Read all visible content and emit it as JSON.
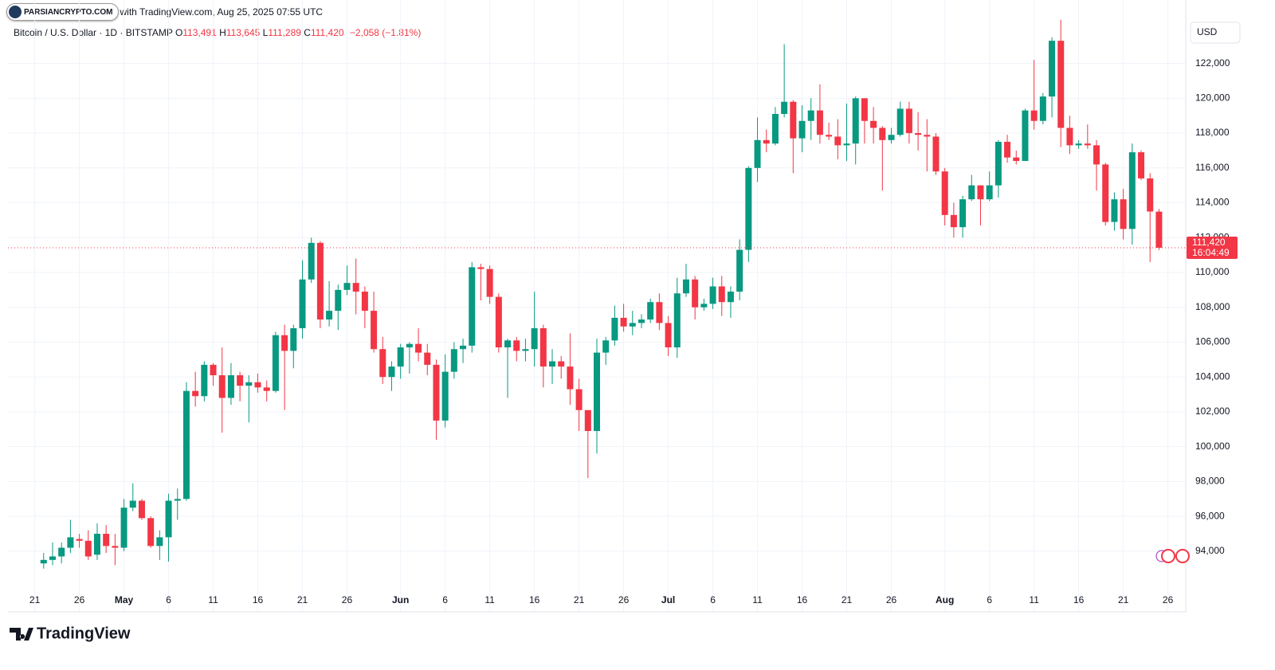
{
  "badge": "PARSIANCRYPTO.COM",
  "caption": "with TradingView.com, Aug 25, 2025 07:55 UTC",
  "legend": {
    "symbol": "Bitcoin / U.S. Dollar · 1D · BITSTAMP",
    "items": [
      {
        "label": "O",
        "value": "113,491"
      },
      {
        "label": "H",
        "value": "113,645"
      },
      {
        "label": "L",
        "value": "111,289"
      },
      {
        "label": "C",
        "value": "111,420"
      }
    ],
    "change": "−2,058 (−1.81%)"
  },
  "brand": "TradingView",
  "chart_data": {
    "type": "candlestick",
    "currency": "USD",
    "up_color": "#089981",
    "down_color": "#f23645",
    "grid": true,
    "last_price_label": "111,420",
    "countdown": "16:04:49",
    "xlim": [
      "2025-04-18",
      "2025-08-28"
    ],
    "ylim": [
      91800,
      125000
    ],
    "yticks": [
      {
        "value": 94000,
        "label": "94,000"
      },
      {
        "value": 96000,
        "label": "96,000"
      },
      {
        "value": 98000,
        "label": "98,000"
      },
      {
        "value": 100000,
        "label": "100,000"
      },
      {
        "value": 102000,
        "label": "102,000"
      },
      {
        "value": 104000,
        "label": "104,000"
      },
      {
        "value": 106000,
        "label": "106,000"
      },
      {
        "value": 108000,
        "label": "108,000"
      },
      {
        "value": 110000,
        "label": "110,000"
      },
      {
        "value": 112000,
        "label": "112,000"
      },
      {
        "value": 114000,
        "label": "114,000"
      },
      {
        "value": 116000,
        "label": "116,000"
      },
      {
        "value": 118000,
        "label": "118,000"
      },
      {
        "value": 120000,
        "label": "120,000"
      },
      {
        "value": 122000,
        "label": "122,000"
      }
    ],
    "xticks": [
      {
        "value": "2025-04-21",
        "label": "21"
      },
      {
        "value": "2025-04-26",
        "label": "26"
      },
      {
        "value": "2025-05-01",
        "label": "May"
      },
      {
        "value": "2025-05-06",
        "label": "6"
      },
      {
        "value": "2025-05-11",
        "label": "11"
      },
      {
        "value": "2025-05-16",
        "label": "16"
      },
      {
        "value": "2025-05-21",
        "label": "21"
      },
      {
        "value": "2025-05-26",
        "label": "26"
      },
      {
        "value": "2025-06-01",
        "label": "Jun"
      },
      {
        "value": "2025-06-06",
        "label": "6"
      },
      {
        "value": "2025-06-11",
        "label": "11"
      },
      {
        "value": "2025-06-16",
        "label": "16"
      },
      {
        "value": "2025-06-21",
        "label": "21"
      },
      {
        "value": "2025-06-26",
        "label": "26"
      },
      {
        "value": "2025-07-01",
        "label": "Jul"
      },
      {
        "value": "2025-07-06",
        "label": "6"
      },
      {
        "value": "2025-07-11",
        "label": "11"
      },
      {
        "value": "2025-07-16",
        "label": "16"
      },
      {
        "value": "2025-07-21",
        "label": "21"
      },
      {
        "value": "2025-07-26",
        "label": "26"
      },
      {
        "value": "2025-08-01",
        "label": "Aug"
      },
      {
        "value": "2025-08-06",
        "label": "6"
      },
      {
        "value": "2025-08-11",
        "label": "11"
      },
      {
        "value": "2025-08-16",
        "label": "16"
      },
      {
        "value": "2025-08-21",
        "label": "21"
      },
      {
        "value": "2025-08-26",
        "label": "26"
      }
    ],
    "x": [
      "2025-04-22",
      "2025-04-23",
      "2025-04-24",
      "2025-04-25",
      "2025-04-26",
      "2025-04-27",
      "2025-04-28",
      "2025-04-29",
      "2025-04-30",
      "2025-05-01",
      "2025-05-02",
      "2025-05-03",
      "2025-05-04",
      "2025-05-05",
      "2025-05-06",
      "2025-05-07",
      "2025-05-08",
      "2025-05-09",
      "2025-05-10",
      "2025-05-11",
      "2025-05-12",
      "2025-05-13",
      "2025-05-14",
      "2025-05-15",
      "2025-05-16",
      "2025-05-17",
      "2025-05-18",
      "2025-05-19",
      "2025-05-20",
      "2025-05-21",
      "2025-05-22",
      "2025-05-23",
      "2025-05-24",
      "2025-05-25",
      "2025-05-26",
      "2025-05-27",
      "2025-05-28",
      "2025-05-29",
      "2025-05-30",
      "2025-05-31",
      "2025-06-01",
      "2025-06-02",
      "2025-06-03",
      "2025-06-04",
      "2025-06-05",
      "2025-06-06",
      "2025-06-07",
      "2025-06-08",
      "2025-06-09",
      "2025-06-10",
      "2025-06-11",
      "2025-06-12",
      "2025-06-13",
      "2025-06-14",
      "2025-06-15",
      "2025-06-16",
      "2025-06-17",
      "2025-06-18",
      "2025-06-19",
      "2025-06-20",
      "2025-06-21",
      "2025-06-22",
      "2025-06-23",
      "2025-06-24",
      "2025-06-25",
      "2025-06-26",
      "2025-06-27",
      "2025-06-28",
      "2025-06-29",
      "2025-06-30",
      "2025-07-01",
      "2025-07-02",
      "2025-07-03",
      "2025-07-04",
      "2025-07-05",
      "2025-07-06",
      "2025-07-07",
      "2025-07-08",
      "2025-07-09",
      "2025-07-10",
      "2025-07-11",
      "2025-07-12",
      "2025-07-13",
      "2025-07-14",
      "2025-07-15",
      "2025-07-16",
      "2025-07-17",
      "2025-07-18",
      "2025-07-19",
      "2025-07-20",
      "2025-07-21",
      "2025-07-22",
      "2025-07-23",
      "2025-07-24",
      "2025-07-25",
      "2025-07-26",
      "2025-07-27",
      "2025-07-28",
      "2025-07-29",
      "2025-07-30",
      "2025-07-31",
      "2025-08-01",
      "2025-08-02",
      "2025-08-03",
      "2025-08-04",
      "2025-08-05",
      "2025-08-06",
      "2025-08-07",
      "2025-08-08",
      "2025-08-09",
      "2025-08-10",
      "2025-08-11",
      "2025-08-12",
      "2025-08-13",
      "2025-08-14",
      "2025-08-15",
      "2025-08-16",
      "2025-08-17",
      "2025-08-18",
      "2025-08-19",
      "2025-08-20",
      "2025-08-21",
      "2025-08-22",
      "2025-08-23",
      "2025-08-24",
      "2025-08-25"
    ],
    "open": [
      93300,
      93500,
      93700,
      94200,
      94700,
      94600,
      93800,
      95000,
      94300,
      94200,
      96500,
      96900,
      95900,
      94300,
      94800,
      96900,
      97000,
      103200,
      102900,
      104700,
      104100,
      102800,
      104100,
      103500,
      103700,
      103400,
      103200,
      106400,
      105500,
      106800,
      109600,
      111700,
      107300,
      107800,
      109000,
      109400,
      108900,
      107800,
      105600,
      104000,
      104600,
      105700,
      105900,
      105400,
      104700,
      101500,
      104300,
      105600,
      105800,
      110300,
      110200,
      108600,
      105700,
      106100,
      105500,
      105600,
      106800,
      104600,
      104900,
      104600,
      103300,
      102100,
      100900,
      105400,
      106100,
      107400,
      106900,
      107100,
      107300,
      108300,
      107100,
      105700,
      108800,
      109600,
      108000,
      108200,
      109200,
      108300,
      108900,
      111300,
      116000,
      117600,
      117400,
      119100,
      119800,
      117700,
      118700,
      119300,
      117900,
      117800,
      117300,
      117400,
      120000,
      118700,
      118300,
      117600,
      117900,
      119400,
      118000,
      117900,
      117800,
      115800,
      113300,
      112600,
      114200,
      115000,
      114200,
      115000,
      117500,
      116600,
      116400,
      119300,
      118700,
      120100,
      123300,
      118300,
      117300,
      117400,
      117300,
      116200,
      112900,
      114200,
      112500,
      116900,
      115400,
      113491
    ],
    "high": [
      93900,
      94500,
      94500,
      95800,
      95000,
      95200,
      95600,
      95500,
      95000,
      97000,
      97900,
      97000,
      96000,
      95200,
      97300,
      97600,
      103700,
      104300,
      104900,
      104800,
      105700,
      104800,
      104300,
      104100,
      104200,
      103800,
      106600,
      107000,
      107000,
      110700,
      112000,
      111800,
      109500,
      109300,
      110400,
      110800,
      109200,
      108900,
      106300,
      104900,
      105900,
      106000,
      106800,
      105900,
      105000,
      105300,
      106000,
      106200,
      110600,
      110500,
      110400,
      108800,
      106200,
      106300,
      106200,
      108900,
      107000,
      105600,
      105200,
      106500,
      103900,
      102100,
      106200,
      106300,
      108100,
      108200,
      107800,
      107600,
      108500,
      108800,
      107500,
      109700,
      110500,
      109800,
      108500,
      109700,
      109800,
      109200,
      111900,
      116100,
      118900,
      118200,
      119500,
      123100,
      119900,
      119600,
      120000,
      120800,
      118600,
      118800,
      119700,
      120100,
      120000,
      119500,
      118400,
      118300,
      119800,
      119800,
      119200,
      118800,
      118000,
      116000,
      114000,
      114400,
      115600,
      115000,
      115800,
      117600,
      117900,
      117000,
      119400,
      122200,
      120300,
      123500,
      124500,
      119000,
      117600,
      118500,
      117600,
      116300,
      114600,
      114800,
      117400,
      117000,
      115700,
      113645
    ],
    "low": [
      93000,
      93200,
      93300,
      93900,
      94200,
      93500,
      93500,
      93900,
      93200,
      94000,
      96300,
      95800,
      94200,
      93500,
      93400,
      95800,
      96900,
      102300,
      102600,
      103500,
      100800,
      102400,
      102600,
      101400,
      103100,
      102600,
      103100,
      102100,
      104500,
      106200,
      109400,
      106800,
      106900,
      106700,
      108700,
      107600,
      106800,
      105400,
      103600,
      103200,
      103900,
      104200,
      104900,
      104100,
      100400,
      101100,
      103900,
      104800,
      105400,
      108400,
      108200,
      105400,
      102800,
      104900,
      104900,
      104600,
      103400,
      103600,
      103900,
      102400,
      100900,
      98200,
      99600,
      104700,
      105800,
      106600,
      106400,
      106800,
      107100,
      106700,
      105200,
      105100,
      108600,
      107300,
      107800,
      107900,
      107500,
      107400,
      108400,
      110600,
      115200,
      116900,
      117300,
      118900,
      115700,
      116900,
      117600,
      117400,
      117600,
      116500,
      116400,
      116200,
      117400,
      117400,
      114700,
      117400,
      117800,
      117400,
      117000,
      115800,
      115600,
      112700,
      112000,
      112000,
      114100,
      112700,
      114100,
      114300,
      116300,
      116200,
      116400,
      118200,
      118500,
      118900,
      117200,
      116800,
      117100,
      117100,
      114700,
      112700,
      112400,
      111900,
      111600,
      115300,
      110600,
      111289
    ],
    "close": [
      93500,
      93700,
      94200,
      94800,
      94600,
      93700,
      95000,
      94300,
      94200,
      96500,
      96900,
      95900,
      94300,
      94800,
      96900,
      97000,
      103200,
      102900,
      104700,
      104100,
      102800,
      104100,
      103500,
      103700,
      103400,
      103200,
      106400,
      105500,
      106800,
      109600,
      111700,
      107300,
      107800,
      109000,
      109400,
      108900,
      107800,
      105600,
      104000,
      104600,
      105700,
      105900,
      105400,
      104700,
      101500,
      104300,
      105600,
      105800,
      110300,
      110200,
      108600,
      105700,
      106100,
      105500,
      105600,
      106800,
      104600,
      104900,
      104600,
      103300,
      102100,
      100900,
      105400,
      106100,
      107400,
      106900,
      107100,
      107300,
      108300,
      107100,
      105700,
      108800,
      109600,
      108000,
      108200,
      109200,
      108300,
      108900,
      111300,
      116000,
      117600,
      117400,
      119100,
      119800,
      117700,
      118700,
      119300,
      117900,
      117800,
      117300,
      117400,
      120000,
      118700,
      118300,
      117600,
      117900,
      119400,
      118000,
      117900,
      117800,
      115800,
      113300,
      112600,
      114200,
      115000,
      114200,
      115000,
      117500,
      116600,
      116400,
      119300,
      118700,
      120100,
      123300,
      118300,
      117300,
      117400,
      117300,
      116200,
      112900,
      114200,
      112500,
      116900,
      115400,
      113500,
      111420
    ]
  }
}
